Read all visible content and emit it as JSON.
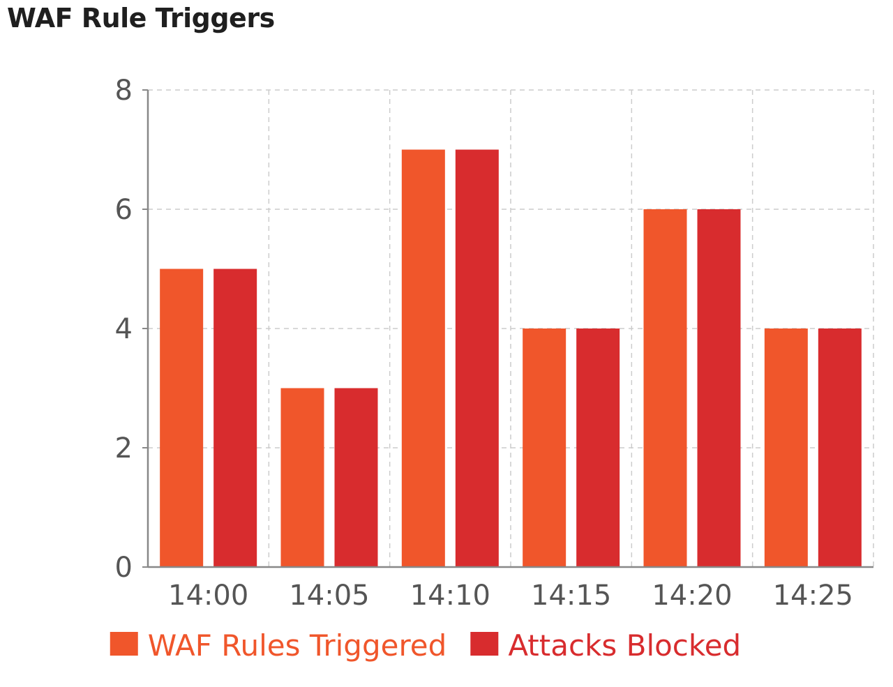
{
  "chart_data": {
    "type": "bar",
    "title": "WAF Rule Triggers",
    "xlabel": "",
    "ylabel": "",
    "categories": [
      "14:00",
      "14:05",
      "14:10",
      "14:15",
      "14:20",
      "14:25"
    ],
    "series": [
      {
        "name": "WAF Rules Triggered",
        "values": [
          5,
          3,
          7,
          4,
          6,
          4
        ],
        "color": "#f0562b"
      },
      {
        "name": "Attacks Blocked",
        "values": [
          5,
          3,
          7,
          4,
          6,
          4
        ],
        "color": "#d82c2e"
      }
    ],
    "ylim": [
      0,
      8
    ],
    "yticks": [
      "0",
      "2",
      "4",
      "6",
      "8"
    ],
    "grid": true,
    "legend": "bottom-center",
    "colors": {
      "axis": "#888888",
      "grid": "#cccccc",
      "tick_text": "#555555"
    }
  }
}
